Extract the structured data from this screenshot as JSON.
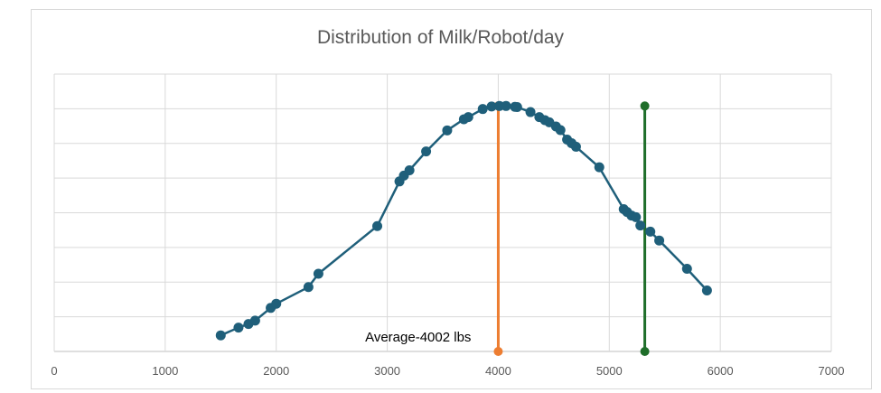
{
  "chart_data": {
    "type": "scatter",
    "title": "Distribution of Milk/Robot/day",
    "xlabel": "",
    "ylabel": "",
    "xlim": [
      0,
      7000
    ],
    "ylim": [
      0,
      1
    ],
    "x_ticks": [
      "0",
      "1000",
      "2000",
      "3000",
      "4000",
      "5000",
      "6000",
      "7000"
    ],
    "grid": true,
    "legend": "none",
    "y_tick_labels_shown": false,
    "series": [
      {
        "color": "#1f5f7a",
        "marker": "circle",
        "connected": true,
        "points": [
          [
            1500,
            0.058
          ],
          [
            1660,
            0.086
          ],
          [
            1750,
            0.099
          ],
          [
            1810,
            0.111
          ],
          [
            1950,
            0.157
          ],
          [
            2000,
            0.172
          ],
          [
            2290,
            0.232
          ],
          [
            2380,
            0.28
          ],
          [
            2910,
            0.452
          ],
          [
            3110,
            0.613
          ],
          [
            3150,
            0.634
          ],
          [
            3200,
            0.653
          ],
          [
            3350,
            0.721
          ],
          [
            3540,
            0.797
          ],
          [
            3690,
            0.837
          ],
          [
            3730,
            0.845
          ],
          [
            3860,
            0.874
          ],
          [
            3940,
            0.883
          ],
          [
            4010,
            0.885
          ],
          [
            4070,
            0.885
          ],
          [
            4150,
            0.882
          ],
          [
            4170,
            0.881
          ],
          [
            4290,
            0.863
          ],
          [
            4370,
            0.845
          ],
          [
            4420,
            0.834
          ],
          [
            4460,
            0.826
          ],
          [
            4520,
            0.811
          ],
          [
            4560,
            0.798
          ],
          [
            4620,
            0.764
          ],
          [
            4660,
            0.751
          ],
          [
            4700,
            0.738
          ],
          [
            4910,
            0.664
          ],
          [
            5130,
            0.513
          ],
          [
            5160,
            0.503
          ],
          [
            5200,
            0.49
          ],
          [
            5240,
            0.484
          ],
          [
            5280,
            0.454
          ],
          [
            5370,
            0.432
          ],
          [
            5450,
            0.4
          ],
          [
            5700,
            0.298
          ],
          [
            5880,
            0.22
          ]
        ]
      }
    ],
    "vertical_lines": [
      {
        "x": 4000,
        "y_top": 0.885,
        "color": "#ed7d31",
        "label": "Average-4002 lbs"
      },
      {
        "x": 5320,
        "y_top": 0.885,
        "color": "#1f6e2a",
        "label": ""
      }
    ]
  }
}
